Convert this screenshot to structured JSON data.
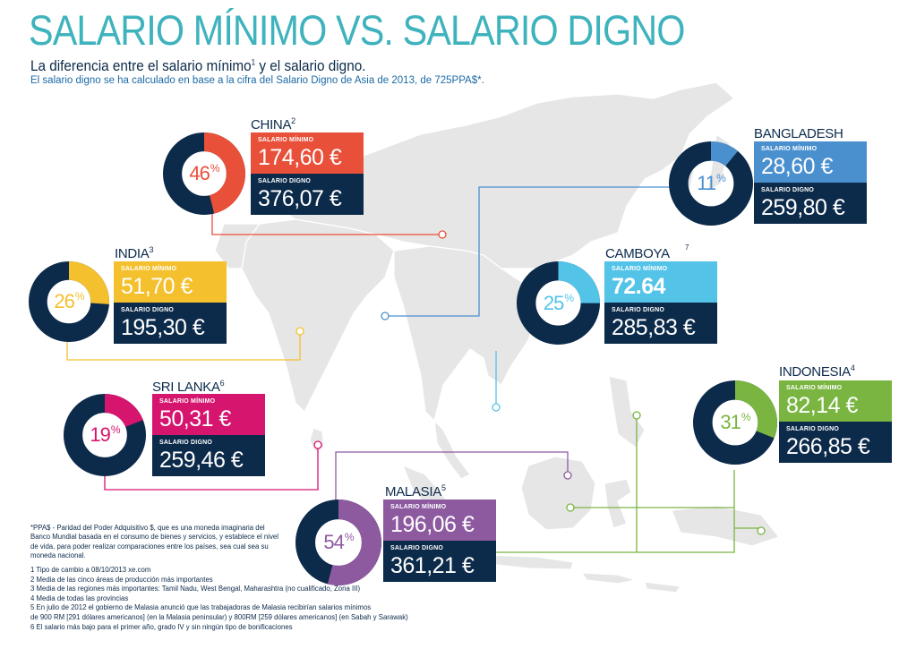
{
  "title": "SALARIO MÍNIMO VS. SALARIO DIGNO",
  "subtitle_main": "La diferencia entre el salario mínimo",
  "subtitle_sup": "1",
  "subtitle_end": " y el salario digno.",
  "subtitle2": "El salario digno se ha calculado en base a la cifra del Salario Digno de Asia de 2013, de 725PPA$*.",
  "labels": {
    "min": "SALARIO MÍNIMO",
    "digno": "SALARIO DIGNO"
  },
  "colors": {
    "navy": "#0c2a4a",
    "teal": "#3fb3bd",
    "map": "#e6e6e6"
  },
  "countries": {
    "china": {
      "name": "CHINA",
      "note": "2",
      "pct": "46",
      "fraction": 0.46,
      "min": "174,60 €",
      "digno": "376,07 €",
      "color": "#e8503a"
    },
    "bangladesh": {
      "name": "BANGLADESH",
      "note": "",
      "pct": "11",
      "fraction": 0.11,
      "min": "28,60 €",
      "digno": "259,80 €",
      "color": "#4a90cf"
    },
    "india": {
      "name": "INDIA",
      "note": "3",
      "pct": "26",
      "fraction": 0.26,
      "min": "51,70 €",
      "digno": "195,30 €",
      "color": "#f4c02e"
    },
    "camboya": {
      "name": "CAMBOYA",
      "note": "7",
      "pct": "25",
      "fraction": 0.25,
      "min": "72.64",
      "digno": "285,83 €",
      "color": "#54c3e8"
    },
    "srilanka": {
      "name": "SRI LANKA",
      "note": "6",
      "pct": "19",
      "fraction": 0.19,
      "min": "50,31 €",
      "digno": "259,46 €",
      "color": "#d6156f"
    },
    "indonesia": {
      "name": "INDONESIA",
      "note": "4",
      "pct": "31",
      "fraction": 0.31,
      "min": "82,14 €",
      "digno": "266,85 €",
      "color": "#79b540"
    },
    "malasia": {
      "name": "MALASIA",
      "note": "5",
      "pct": "54",
      "fraction": 0.54,
      "min": "196,06 €",
      "digno": "361,21 €",
      "color": "#8d5aa0"
    }
  },
  "ppa_note": "*PPA$ - Paridad del Poder Adquisitivo $, que es una moneda imaginaria del Banco Mundial basada en el consumo de bienes y servicios, y establece el nivel de vida, para poder realizar comparaciones entre los países, sea cual sea su moneda nacional.",
  "footnotes": [
    "1 Tipo de cambio a 08/10/2013 xe.com",
    "2 Media de las cinco áreas de producción más importantes",
    "3 Media de las regiones más importantes: Tamil Nadu, West Bengal, Maharashtra (no cualificado, Zona III)",
    "4 Media de todas las provincias",
    "5 En julio de 2012 el gobierno de Malasia anunció que las trabajadoras de Malasia recibirían salarios mínimos",
    "de 900 RM [291 dólares americanos] (en la Malasia peninsular) y 800RM [259 dólares americanos] (en Sabah y Sarawak)",
    "6 El salario más bajo para el primer año, grado IV y sin ningún tipo de bonificaciones"
  ]
}
